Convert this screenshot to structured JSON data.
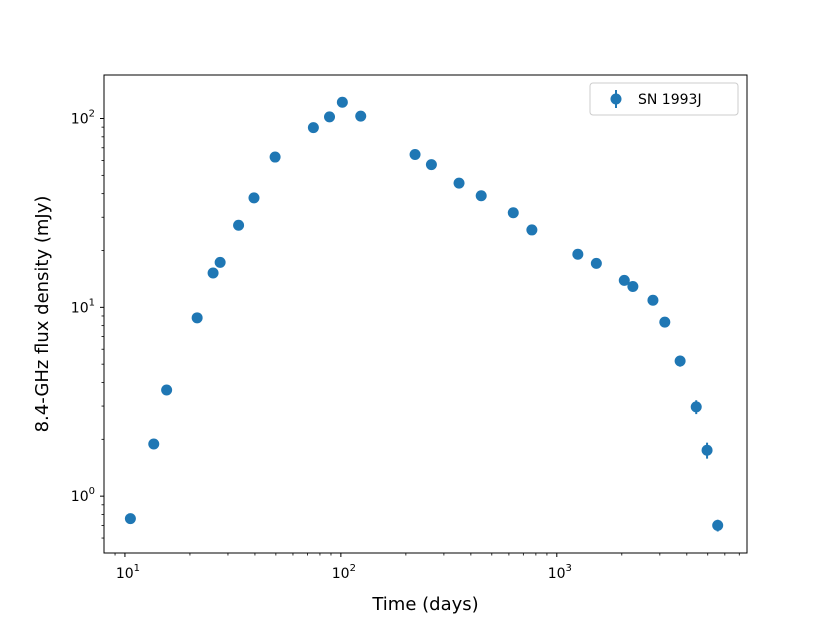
{
  "chart_data": {
    "type": "scatter",
    "title": "",
    "xlabel": "Time (days)",
    "ylabel": "8.4-GHz flux density (mJy)",
    "xscale": "log",
    "yscale": "log",
    "xlim": [
      8,
      7600
    ],
    "ylim": [
      0.5,
      170
    ],
    "grid": false,
    "legend_position": "top-right",
    "marker_color": "#1f77b4",
    "x_ticks": [
      {
        "value": 10,
        "base": "10",
        "exp": "1"
      },
      {
        "value": 100,
        "base": "10",
        "exp": "2"
      },
      {
        "value": 1000,
        "base": "10",
        "exp": "3"
      }
    ],
    "y_ticks": [
      {
        "value": 1,
        "base": "10",
        "exp": "0"
      },
      {
        "value": 10,
        "base": "10",
        "exp": "1"
      },
      {
        "value": 100,
        "base": "10",
        "exp": "2"
      }
    ],
    "series": [
      {
        "name": "SN 1993J",
        "points": [
          {
            "x": 10.6,
            "y": 0.76,
            "err": 0
          },
          {
            "x": 13.6,
            "y": 1.89,
            "err": 0
          },
          {
            "x": 15.6,
            "y": 3.65,
            "err": 0
          },
          {
            "x": 21.6,
            "y": 8.8,
            "err": 0
          },
          {
            "x": 25.6,
            "y": 15.2,
            "err": 0
          },
          {
            "x": 27.6,
            "y": 17.3,
            "err": 0
          },
          {
            "x": 33.6,
            "y": 27.2,
            "err": 0
          },
          {
            "x": 39.6,
            "y": 38.0,
            "err": 0
          },
          {
            "x": 49.6,
            "y": 62.5,
            "err": 0
          },
          {
            "x": 74.6,
            "y": 89.5,
            "err": 0
          },
          {
            "x": 88.6,
            "y": 102.0,
            "err": 0
          },
          {
            "x": 101.6,
            "y": 122.0,
            "err": 0
          },
          {
            "x": 123.6,
            "y": 103.0,
            "err": 0
          },
          {
            "x": 220.6,
            "y": 64.5,
            "err": 0
          },
          {
            "x": 262.6,
            "y": 57.0,
            "err": 0
          },
          {
            "x": 352.6,
            "y": 45.5,
            "err": 0
          },
          {
            "x": 446.6,
            "y": 39.0,
            "err": 0
          },
          {
            "x": 628.6,
            "y": 31.7,
            "err": 0
          },
          {
            "x": 766.6,
            "y": 25.7,
            "err": 0
          },
          {
            "x": 1251.6,
            "y": 19.1,
            "err": 0
          },
          {
            "x": 1524.6,
            "y": 17.1,
            "err": 0
          },
          {
            "x": 2053.6,
            "y": 13.9,
            "err": 0
          },
          {
            "x": 2250.6,
            "y": 12.9,
            "err": 0
          },
          {
            "x": 2787.6,
            "y": 10.9,
            "err": 0
          },
          {
            "x": 3163.6,
            "y": 8.35,
            "err": 0
          },
          {
            "x": 3724.6,
            "y": 5.2,
            "err": 0.35
          },
          {
            "x": 4422.6,
            "y": 2.97,
            "err": 0.25
          },
          {
            "x": 4964.6,
            "y": 1.75,
            "err": 0.17
          },
          {
            "x": 5560.6,
            "y": 0.7,
            "err": 0.05
          }
        ]
      }
    ]
  }
}
